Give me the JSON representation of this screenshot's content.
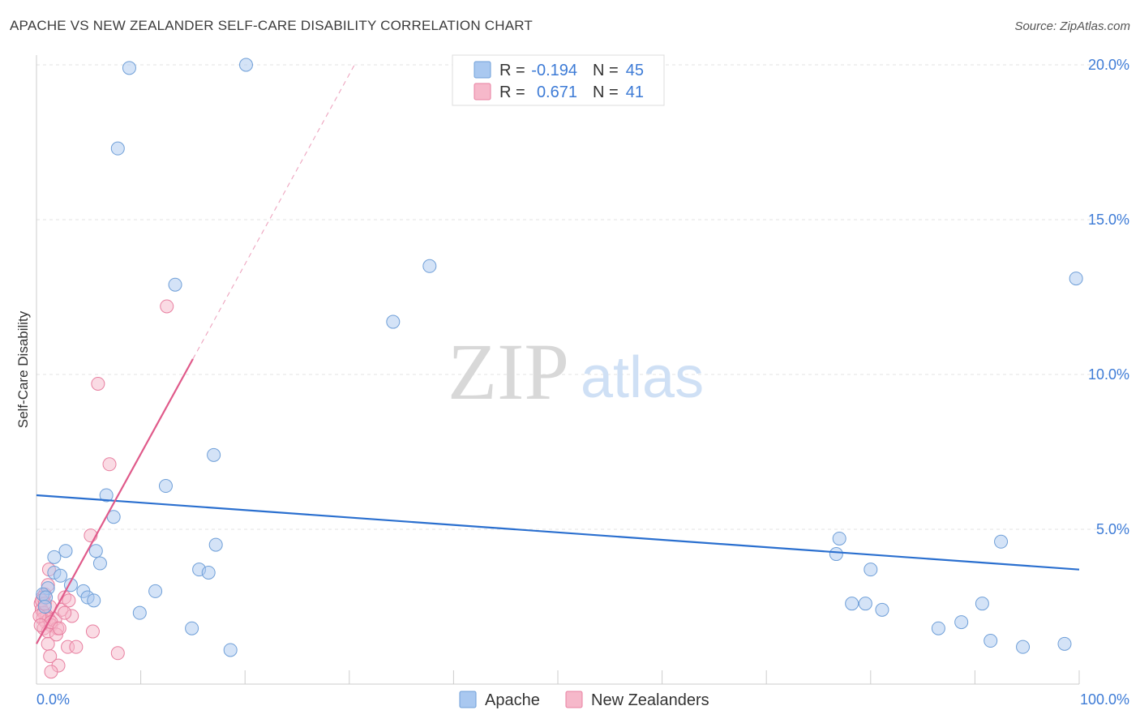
{
  "title": "APACHE VS NEW ZEALANDER SELF-CARE DISABILITY CORRELATION CHART",
  "source": "Source: ZipAtlas.com",
  "watermark": {
    "part1": "ZIP",
    "part2": "atlas"
  },
  "colors": {
    "apache_fill": "#a9c8f0",
    "apache_stroke": "#6f9fd8",
    "apache_line": "#2a6fcf",
    "nz_fill": "#f6b8ca",
    "nz_stroke": "#e87fa0",
    "nz_line": "#e05a8a",
    "value_text": "#3d7bd6",
    "grid": "#e3e3e3"
  },
  "stats": {
    "apache": {
      "r_label": "R = ",
      "r": "-0.194",
      "n_label": "N = ",
      "n": "45"
    },
    "nz": {
      "r_label": "R = ",
      "r": "0.671",
      "n_label": "N = ",
      "n": "41"
    }
  },
  "chart_data": {
    "type": "scatter",
    "title": "APACHE VS NEW ZEALANDER SELF-CARE DISABILITY CORRELATION CHART",
    "xlabel": "",
    "ylabel": "Self-Care Disability",
    "xlim": [
      0,
      100
    ],
    "ylim": [
      0,
      20.5
    ],
    "x_tick_labels": [
      "0.0%",
      "100.0%"
    ],
    "y_ticks": [
      5,
      10,
      15,
      20
    ],
    "y_tick_labels": [
      "5.0%",
      "10.0%",
      "15.0%",
      "20.0%"
    ],
    "grid": true,
    "legend_position": "bottom-center",
    "series": [
      {
        "name": "Apache",
        "points": [
          [
            8.9,
            19.9
          ],
          [
            20.1,
            20.0
          ],
          [
            7.8,
            17.3
          ],
          [
            13.3,
            12.9
          ],
          [
            37.7,
            13.5
          ],
          [
            34.2,
            11.7
          ],
          [
            99.7,
            13.1
          ],
          [
            17.0,
            7.4
          ],
          [
            12.4,
            6.4
          ],
          [
            6.7,
            6.1
          ],
          [
            7.4,
            5.4
          ],
          [
            2.8,
            4.3
          ],
          [
            1.7,
            4.1
          ],
          [
            5.7,
            4.3
          ],
          [
            6.1,
            3.9
          ],
          [
            17.2,
            4.5
          ],
          [
            15.6,
            3.7
          ],
          [
            16.5,
            3.6
          ],
          [
            1.7,
            3.6
          ],
          [
            2.3,
            3.5
          ],
          [
            3.3,
            3.2
          ],
          [
            1.1,
            3.1
          ],
          [
            4.5,
            3.0
          ],
          [
            0.6,
            2.9
          ],
          [
            0.9,
            2.8
          ],
          [
            4.9,
            2.8
          ],
          [
            5.5,
            2.7
          ],
          [
            11.4,
            3.0
          ],
          [
            0.8,
            2.5
          ],
          [
            9.9,
            2.3
          ],
          [
            18.6,
            1.1
          ],
          [
            14.9,
            1.8
          ],
          [
            77.0,
            4.7
          ],
          [
            76.7,
            4.2
          ],
          [
            80.0,
            3.7
          ],
          [
            78.2,
            2.6
          ],
          [
            79.5,
            2.6
          ],
          [
            81.1,
            2.4
          ],
          [
            92.5,
            4.6
          ],
          [
            90.7,
            2.6
          ],
          [
            88.7,
            2.0
          ],
          [
            86.5,
            1.8
          ],
          [
            91.5,
            1.4
          ],
          [
            94.6,
            1.2
          ],
          [
            98.6,
            1.3
          ]
        ],
        "trend": {
          "x": [
            0,
            100
          ],
          "y": [
            6.1,
            3.7
          ],
          "style": "solid"
        }
      },
      {
        "name": "New Zealanders",
        "points": [
          [
            12.5,
            12.2
          ],
          [
            5.9,
            9.7
          ],
          [
            7.0,
            7.1
          ],
          [
            5.2,
            4.8
          ],
          [
            0.8,
            2.9
          ],
          [
            1.1,
            3.2
          ],
          [
            0.6,
            2.8
          ],
          [
            0.4,
            2.6
          ],
          [
            1.3,
            2.5
          ],
          [
            0.5,
            2.4
          ],
          [
            0.7,
            2.3
          ],
          [
            1.0,
            2.2
          ],
          [
            0.6,
            2.1
          ],
          [
            0.9,
            2.0
          ],
          [
            1.2,
            2.1
          ],
          [
            1.8,
            2.1
          ],
          [
            1.4,
            1.9
          ],
          [
            2.0,
            1.8
          ],
          [
            0.7,
            1.8
          ],
          [
            1.1,
            1.7
          ],
          [
            1.9,
            1.6
          ],
          [
            1.4,
            2.0
          ],
          [
            2.4,
            2.4
          ],
          [
            3.4,
            2.2
          ],
          [
            1.2,
            3.7
          ],
          [
            2.7,
            2.8
          ],
          [
            3.1,
            2.7
          ],
          [
            0.5,
            2.7
          ],
          [
            2.7,
            2.3
          ],
          [
            5.4,
            1.7
          ],
          [
            1.1,
            1.3
          ],
          [
            3.0,
            1.2
          ],
          [
            3.8,
            1.2
          ],
          [
            7.8,
            1.0
          ],
          [
            1.3,
            0.9
          ],
          [
            2.1,
            0.6
          ],
          [
            1.4,
            0.4
          ],
          [
            0.3,
            2.2
          ],
          [
            0.4,
            1.9
          ],
          [
            0.8,
            2.6
          ],
          [
            2.2,
            1.8
          ]
        ],
        "trend": {
          "x": [
            0,
            15
          ],
          "y": [
            1.3,
            10.5
          ],
          "style": "solid"
        },
        "trend_extension": {
          "x": [
            15,
            30.5
          ],
          "y": [
            10.5,
            20.0
          ],
          "style": "dashed"
        }
      }
    ]
  }
}
